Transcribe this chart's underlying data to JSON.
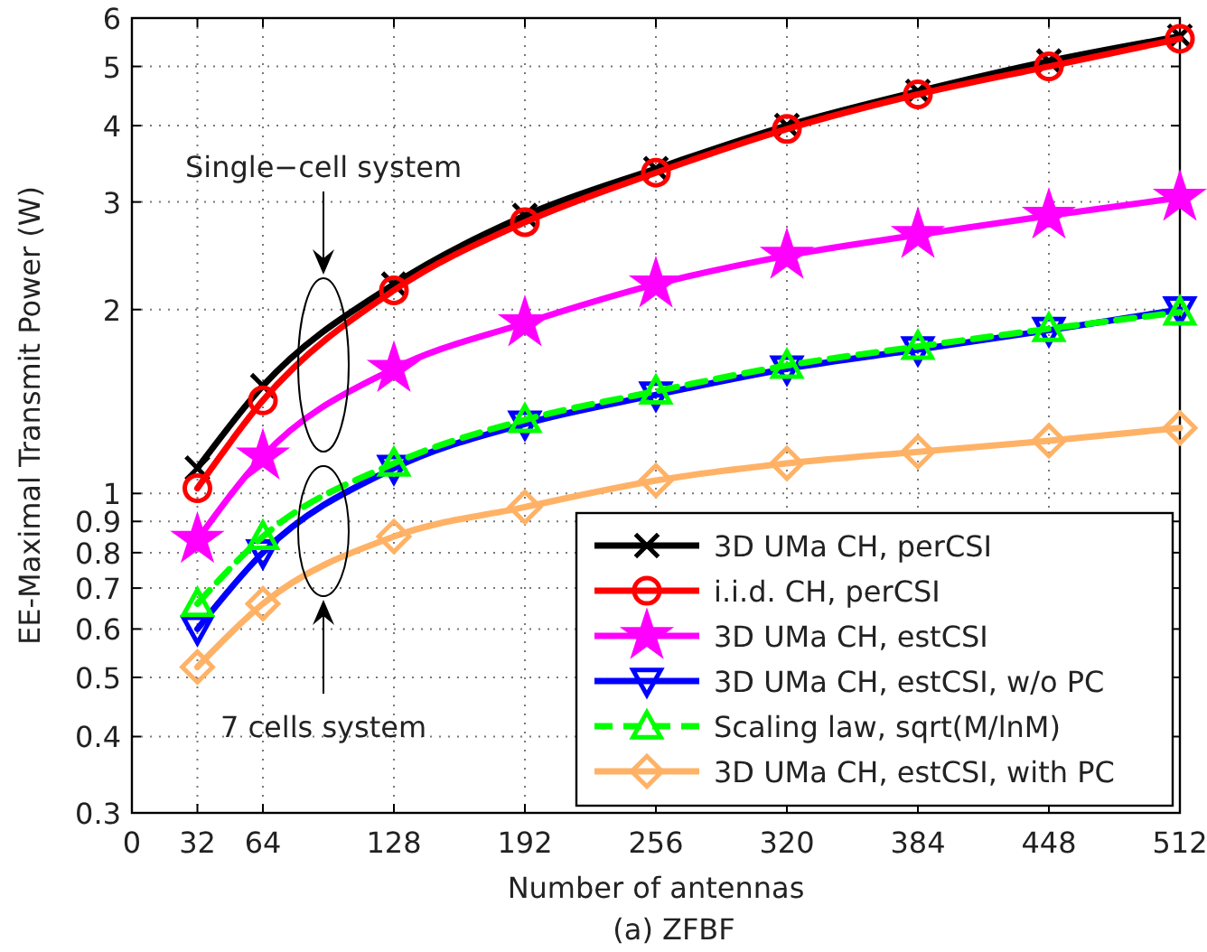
{
  "chart_data": {
    "type": "line",
    "xlabel": "Number of antennas",
    "ylabel": "EE-Maximal Transmit Power (W)",
    "x": [
      32,
      64,
      128,
      192,
      256,
      320,
      384,
      448,
      512
    ],
    "series": [
      {
        "name": "3D UMa CH, perCSI",
        "color": "#000000",
        "marker": "cross",
        "values": [
          1.1,
          1.5,
          2.2,
          2.85,
          3.4,
          4.0,
          4.55,
          5.1,
          5.6
        ]
      },
      {
        "name": "i.i.d. CH, perCSI",
        "color": "#ff0000",
        "marker": "circle",
        "values": [
          1.02,
          1.42,
          2.15,
          2.78,
          3.35,
          3.95,
          4.5,
          5.0,
          5.55
        ]
      },
      {
        "name": "3D UMa CH, estCSI",
        "color": "#ff00ff",
        "marker": "star",
        "values": [
          0.84,
          1.15,
          1.6,
          1.9,
          2.2,
          2.45,
          2.65,
          2.85,
          3.05
        ]
      },
      {
        "name": "3D UMa CH, estCSI, w/o PC",
        "color": "#0000ff",
        "marker": "triangle-down",
        "values": [
          0.6,
          0.8,
          1.1,
          1.3,
          1.45,
          1.6,
          1.72,
          1.85,
          2.0
        ]
      },
      {
        "name": "Scaling law, sqrt(M/lnM)",
        "color": "#00ff00",
        "marker": "triangle",
        "line_style": "dashed",
        "values": [
          0.66,
          0.85,
          1.12,
          1.32,
          1.47,
          1.62,
          1.74,
          1.86,
          1.98
        ]
      },
      {
        "name": "3D UMa CH, estCSI, with PC",
        "color": "#ffb266",
        "marker": "diamond",
        "values": [
          0.52,
          0.66,
          0.85,
          0.95,
          1.05,
          1.12,
          1.17,
          1.22,
          1.28
        ]
      }
    ],
    "xlim": [
      0,
      512
    ],
    "xticks": [
      0,
      32,
      64,
      128,
      192,
      256,
      320,
      384,
      448,
      512
    ],
    "ylim": [
      0.3,
      6
    ],
    "yticks": [
      0.3,
      0.4,
      0.5,
      0.6,
      0.7,
      0.8,
      0.9,
      1,
      2,
      3,
      4,
      5,
      6
    ],
    "log": "y",
    "grid": true,
    "legend": "bottom right",
    "line_style": "solid",
    "annotations": [
      "Single−cell system",
      "7 cells system",
      "(a) ZFBF"
    ]
  }
}
